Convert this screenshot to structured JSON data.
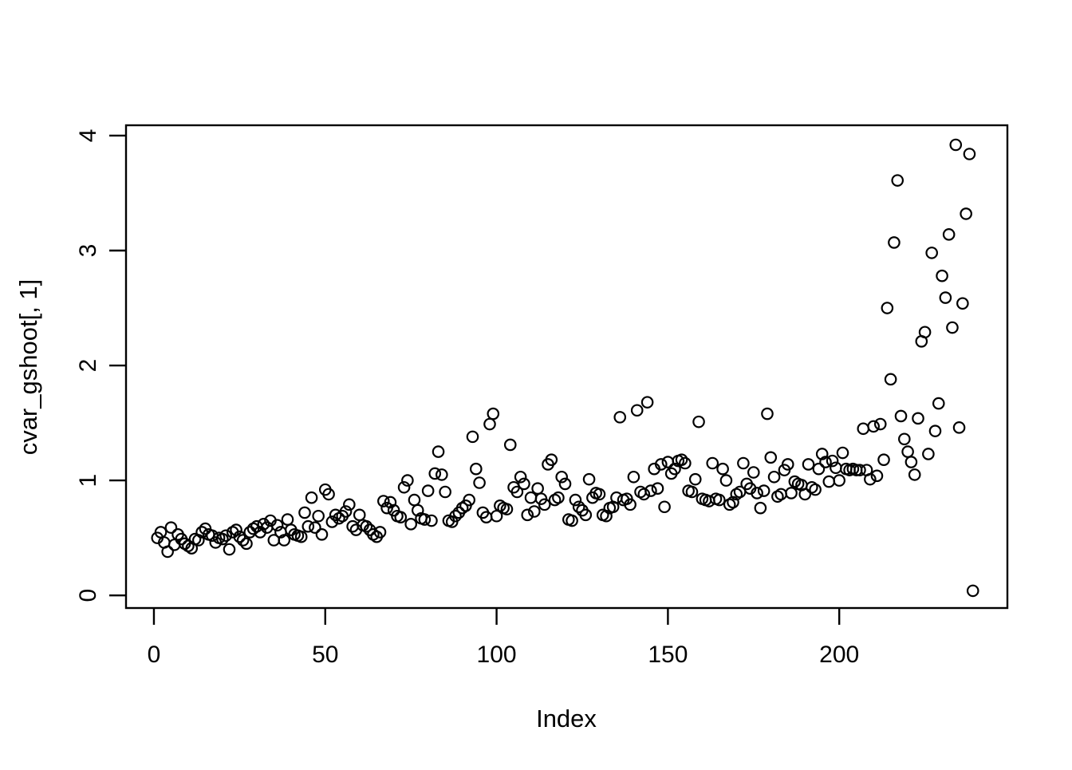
{
  "chart_data": {
    "type": "scatter",
    "title": "",
    "xlabel": "Index",
    "ylabel": "cvar_gshoot[, 1]",
    "x_ticks": [
      0,
      50,
      100,
      150,
      200
    ],
    "y_ticks": [
      0,
      1,
      2,
      3,
      4
    ],
    "xlim": [
      -8.14,
      249.07
    ],
    "ylim": [
      -0.11,
      4.09
    ],
    "grid": false,
    "legend": "none",
    "marker": "open-circle",
    "marker_color": "#000000",
    "background_color": "#ffffff",
    "x_start_index": 1,
    "y_values": [
      0.5,
      0.55,
      0.46,
      0.38,
      0.59,
      0.44,
      0.53,
      0.49,
      0.45,
      0.43,
      0.41,
      0.49,
      0.48,
      0.55,
      0.58,
      0.53,
      0.52,
      0.46,
      0.5,
      0.49,
      0.52,
      0.4,
      0.55,
      0.57,
      0.51,
      0.48,
      0.45,
      0.55,
      0.58,
      0.6,
      0.55,
      0.62,
      0.59,
      0.65,
      0.48,
      0.61,
      0.55,
      0.48,
      0.66,
      0.57,
      0.53,
      0.52,
      0.51,
      0.72,
      0.6,
      0.85,
      0.59,
      0.69,
      0.53,
      0.92,
      0.88,
      0.64,
      0.7,
      0.67,
      0.69,
      0.73,
      0.79,
      0.6,
      0.57,
      0.7,
      0.61,
      0.6,
      0.57,
      0.53,
      0.51,
      0.55,
      0.82,
      0.76,
      0.81,
      0.74,
      0.69,
      0.68,
      0.94,
      1.0,
      0.62,
      0.83,
      0.74,
      0.67,
      0.66,
      0.91,
      0.65,
      1.06,
      1.25,
      1.05,
      0.9,
      0.65,
      0.64,
      0.69,
      0.72,
      0.76,
      0.78,
      0.83,
      1.38,
      1.1,
      0.98,
      0.72,
      0.68,
      1.49,
      1.58,
      0.69,
      0.78,
      0.76,
      0.75,
      1.31,
      0.94,
      0.9,
      1.03,
      0.97,
      0.7,
      0.85,
      0.73,
      0.93,
      0.84,
      0.79,
      1.14,
      1.18,
      0.83,
      0.85,
      1.03,
      0.97,
      0.66,
      0.65,
      0.83,
      0.77,
      0.74,
      0.7,
      1.01,
      0.85,
      0.89,
      0.88,
      0.7,
      0.69,
      0.76,
      0.77,
      0.85,
      1.55,
      0.83,
      0.84,
      0.79,
      1.03,
      1.61,
      0.9,
      0.88,
      1.68,
      0.91,
      1.1,
      0.93,
      1.14,
      0.77,
      1.16,
      1.06,
      1.1,
      1.17,
      1.18,
      1.15,
      0.91,
      0.9,
      1.01,
      1.51,
      0.84,
      0.83,
      0.82,
      1.15,
      0.84,
      0.83,
      1.1,
      1.0,
      0.79,
      0.81,
      0.88,
      0.9,
      1.15,
      0.97,
      0.93,
      1.07,
      0.89,
      0.76,
      0.91,
      1.58,
      1.2,
      1.03,
      0.86,
      0.88,
      1.09,
      1.14,
      0.89,
      0.99,
      0.97,
      0.96,
      0.88,
      1.14,
      0.94,
      0.92,
      1.1,
      1.23,
      1.16,
      0.99,
      1.17,
      1.11,
      1.0,
      1.24,
      1.1,
      1.09,
      1.1,
      1.09,
      1.09,
      1.45,
      1.09,
      1.01,
      1.47,
      1.04,
      1.49,
      1.18,
      2.5,
      1.88,
      3.07,
      3.61,
      1.56,
      1.36,
      1.25,
      1.16,
      1.05,
      1.54,
      2.21,
      2.29,
      1.23,
      2.98,
      1.43,
      1.67,
      2.78,
      2.59,
      3.14,
      2.33,
      3.92,
      1.46,
      2.54,
      3.32,
      3.84,
      0.04
    ]
  }
}
